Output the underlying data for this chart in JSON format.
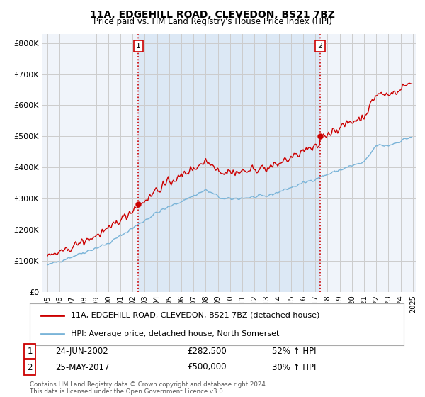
{
  "title1": "11A, EDGEHILL ROAD, CLEVEDON, BS21 7BZ",
  "title2": "Price paid vs. HM Land Registry's House Price Index (HPI)",
  "legend_label1": "11A, EDGEHILL ROAD, CLEVEDON, BS21 7BZ (detached house)",
  "legend_label2": "HPI: Average price, detached house, North Somerset",
  "marker1_label": "1",
  "marker1_date": "24-JUN-2002",
  "marker1_price": "£282,500",
  "marker1_pct": "52% ↑ HPI",
  "marker1_x": 2002.47,
  "marker1_y": 282500,
  "marker2_label": "2",
  "marker2_date": "25-MAY-2017",
  "marker2_price": "£500,000",
  "marker2_pct": "30% ↑ HPI",
  "marker2_x": 2017.38,
  "marker2_y": 500000,
  "footer": "Contains HM Land Registry data © Crown copyright and database right 2024.\nThis data is licensed under the Open Government Licence v3.0.",
  "hpi_color": "#7ab4d8",
  "price_color": "#cc0000",
  "marker_vline_color": "#cc0000",
  "shade_color": "#dce8f5",
  "grid_color": "#cccccc",
  "ylim": [
    0,
    830000
  ],
  "xlim_start": 1994.6,
  "xlim_end": 2025.3,
  "background_color": "#f0f4fa",
  "plot_bg_color": "#f0f4fa"
}
